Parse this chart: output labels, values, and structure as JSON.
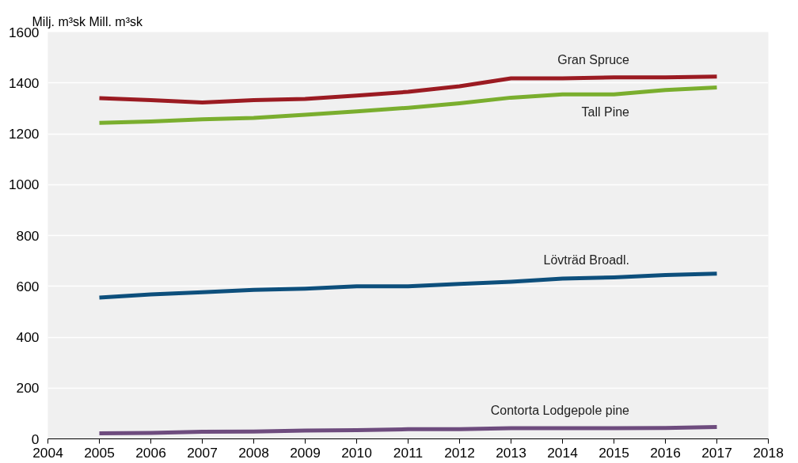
{
  "chart_data": {
    "type": "line",
    "ylabel": "Milj. m³sk Mill. m³sk",
    "x": [
      2005,
      2006,
      2007,
      2008,
      2009,
      2010,
      2011,
      2012,
      2013,
      2014,
      2015,
      2016,
      2017
    ],
    "series": [
      {
        "name": "Gran Spruce",
        "color": "#9b1b22",
        "values": [
          1340,
          1332,
          1323,
          1332,
          1337,
          1350,
          1365,
          1387,
          1418,
          1418,
          1422,
          1422,
          1425
        ]
      },
      {
        "name": "Tall Pine",
        "color": "#7aae2e",
        "values": [
          1243,
          1248,
          1257,
          1262,
          1275,
          1288,
          1302,
          1320,
          1342,
          1355,
          1355,
          1372,
          1382
        ]
      },
      {
        "name": "Lövträd Broadl.",
        "color": "#0d4f7c",
        "values": [
          556,
          568,
          577,
          586,
          591,
          600,
          600,
          609,
          618,
          630,
          635,
          644,
          650
        ]
      },
      {
        "name": "Contorta Lodgepole pine",
        "color": "#6e4c7e",
        "values": [
          22,
          23,
          28,
          29,
          33,
          34,
          38,
          38,
          42,
          42,
          42,
          43,
          47
        ]
      }
    ],
    "xlim": [
      2004,
      2018
    ],
    "xticks": [
      2004,
      2005,
      2006,
      2007,
      2008,
      2009,
      2010,
      2011,
      2012,
      2013,
      2014,
      2015,
      2016,
      2017,
      2018
    ],
    "ylim": [
      0,
      1600
    ],
    "yticks": [
      0,
      200,
      400,
      600,
      800,
      1000,
      1200,
      1400,
      1600
    ],
    "grid": "y",
    "legend": false,
    "marker": "none",
    "line_style": "solid"
  }
}
